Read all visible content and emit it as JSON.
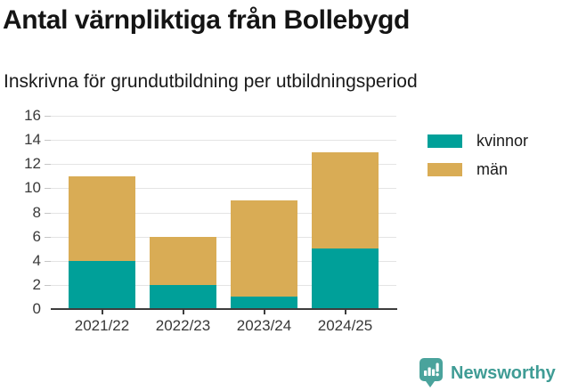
{
  "header": {
    "title": "Antal värnpliktiga från Bollebygd",
    "subtitle": "Inskrivna för grundutbildning per utbildningsperiod"
  },
  "chart_data": {
    "type": "bar",
    "stacked": true,
    "title": "Antal värnpliktiga från Bollebygd",
    "subtitle": "Inskrivna för grundutbildning per utbildningsperiod",
    "categories": [
      "2021/22",
      "2022/23",
      "2023/24",
      "2024/25"
    ],
    "series": [
      {
        "name": "kvinnor",
        "color": "#00a099",
        "values": [
          4,
          2,
          1,
          5
        ]
      },
      {
        "name": "män",
        "color": "#d9ac55",
        "values": [
          7,
          4,
          8,
          8
        ]
      }
    ],
    "totals": [
      11,
      6,
      9,
      13
    ],
    "ylim": [
      0,
      16
    ],
    "ytick_step": 2,
    "yticks": [
      0,
      2,
      4,
      6,
      8,
      10,
      12,
      14,
      16
    ],
    "grid": true,
    "legend_position": "top-right",
    "xlabel": "",
    "ylabel": ""
  },
  "branding": {
    "name": "Newsworthy",
    "logo_icon": "bar-chart-pin-icon",
    "color": "#3f9c95"
  },
  "colors": {
    "series_kvinnor": "#00a099",
    "series_man": "#d9ac55",
    "axis_line": "#3d3d3d",
    "gridline": "#e4e4e4",
    "title_text": "#141414"
  }
}
